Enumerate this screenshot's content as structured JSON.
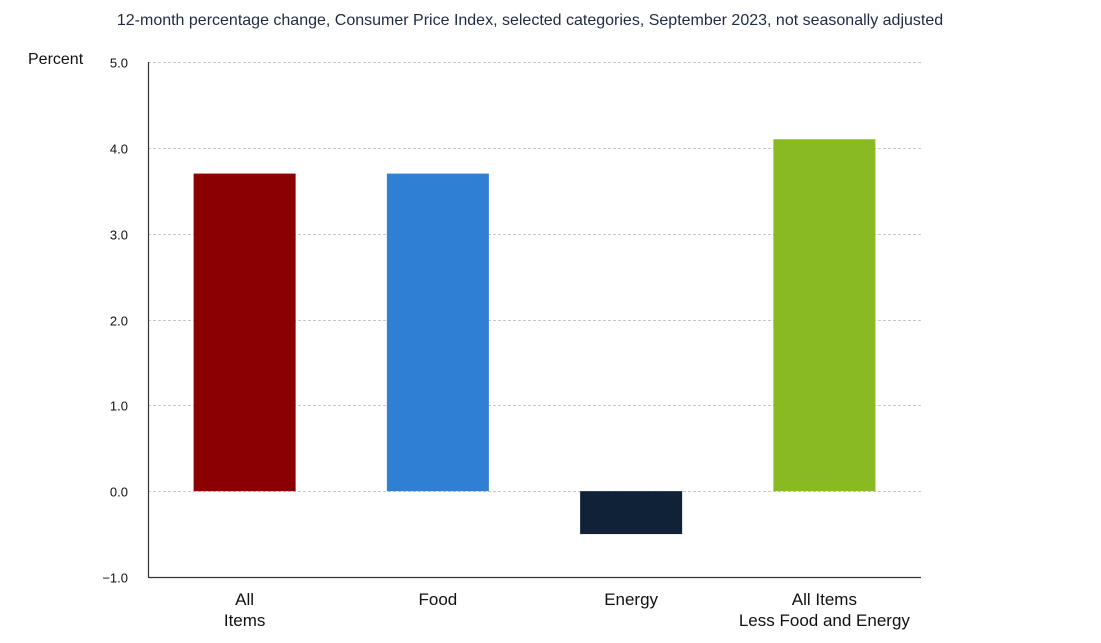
{
  "chart_data": {
    "type": "bar",
    "title": "12-month percentage change, Consumer Price Index, selected categories, September 2023, not seasonally adjusted",
    "ylabel": "Percent",
    "xlabel": "",
    "ylim": [
      -1.0,
      5.0
    ],
    "yticks": [
      "5.0",
      "4.0",
      "3.0",
      "2.0",
      "1.0",
      "0.0",
      "−1.0"
    ],
    "ytick_values": [
      5.0,
      4.0,
      3.0,
      2.0,
      1.0,
      0.0,
      -1.0
    ],
    "grid": true,
    "legend": "none",
    "categories": [
      {
        "label_lines": [
          "All",
          "Items"
        ],
        "value": 3.7,
        "color": "#8b0000"
      },
      {
        "label_lines": [
          "Food"
        ],
        "value": 3.7,
        "color": "#2f7fd4"
      },
      {
        "label_lines": [
          "Energy"
        ],
        "value": -0.5,
        "color": "#0f2238"
      },
      {
        "label_lines": [
          "All Items",
          "Less Food and Energy"
        ],
        "value": 4.1,
        "color": "#8aba22"
      }
    ]
  }
}
